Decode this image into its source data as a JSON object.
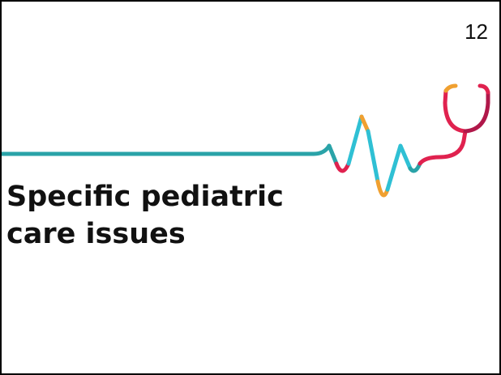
{
  "slide_number": "12",
  "title": {
    "lines": [
      "Specific pediatric",
      "care issues"
    ]
  }
}
